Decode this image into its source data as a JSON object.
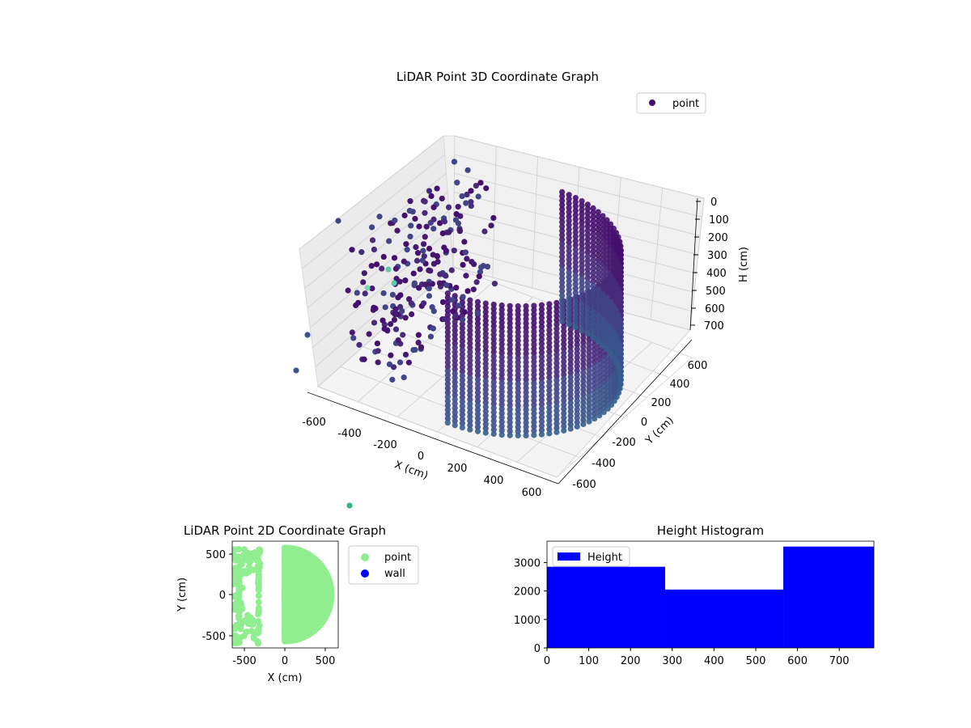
{
  "chart_data": [
    {
      "type": "scatter3d",
      "title": "LiDAR Point 3D Coordinate Graph",
      "xlabel": "X (cm)",
      "ylabel": "Y (cm)",
      "zlabel": "H (cm)",
      "xlim": [
        -650,
        650
      ],
      "ylim": [
        -650,
        650
      ],
      "zlim": [
        0,
        780
      ],
      "z_inverted": true,
      "xticks": [
        "-600",
        "-400",
        "-200",
        "0",
        "200",
        "400",
        "600"
      ],
      "yticks": [
        "-600",
        "-400",
        "-200",
        "0",
        "200",
        "400",
        "600"
      ],
      "zticks": [
        "0",
        "100",
        "200",
        "300",
        "400",
        "500",
        "600",
        "700"
      ],
      "legend": {
        "position": "top-right",
        "entries": [
          {
            "name": "point",
            "color": "#440f6e"
          }
        ]
      },
      "colormap": "viridis",
      "grid": true,
      "description_series": [
        {
          "name": "wall arc",
          "shape": "half-cylinder",
          "center_x": 0,
          "center_y": 0,
          "radius": 550,
          "angle_range_deg": [
            -90,
            90
          ],
          "h_range": [
            0,
            780
          ]
        },
        {
          "name": "left arc",
          "shape": "scattered arc",
          "x_range": [
            -620,
            -350
          ],
          "y_range": [
            -500,
            520
          ]
        }
      ]
    },
    {
      "type": "scatter",
      "title": "LiDAR Point 2D Coordinate Graph",
      "xlabel": "X (cm)",
      "ylabel": "Y (cm)",
      "xlim": [
        -650,
        650
      ],
      "ylim": [
        -650,
        650
      ],
      "xticks": [
        "-500",
        "0",
        "500"
      ],
      "yticks": [
        "-500",
        "0",
        "500"
      ],
      "legend": {
        "position": "outside-right",
        "entries": [
          {
            "name": "point",
            "color": "#90ee90"
          },
          {
            "name": "wall",
            "color": "#0000ff"
          }
        ]
      },
      "series": [
        {
          "name": "point",
          "shape": "half-disk",
          "center": [
            0,
            0
          ],
          "radius": 580,
          "angle_range_deg": [
            -90,
            90
          ]
        },
        {
          "name": "point",
          "shape": "band",
          "x_range": [
            -640,
            -300
          ],
          "y_range": [
            -600,
            560
          ]
        }
      ]
    },
    {
      "type": "bar",
      "title": "Height Histogram",
      "legend": {
        "position": "top-left",
        "entries": [
          {
            "name": "Height",
            "color": "#0000ff"
          }
        ]
      },
      "bins": [
        [
          0,
          283
        ],
        [
          283,
          566
        ],
        [
          566,
          783
        ]
      ],
      "values": [
        2850,
        2050,
        3560
      ],
      "xlim": [
        0,
        783
      ],
      "ylim": [
        0,
        3750
      ],
      "xticks": [
        "0",
        "100",
        "200",
        "300",
        "400",
        "500",
        "600",
        "700"
      ],
      "yticks": [
        "0",
        "1000",
        "2000",
        "3000"
      ]
    }
  ]
}
